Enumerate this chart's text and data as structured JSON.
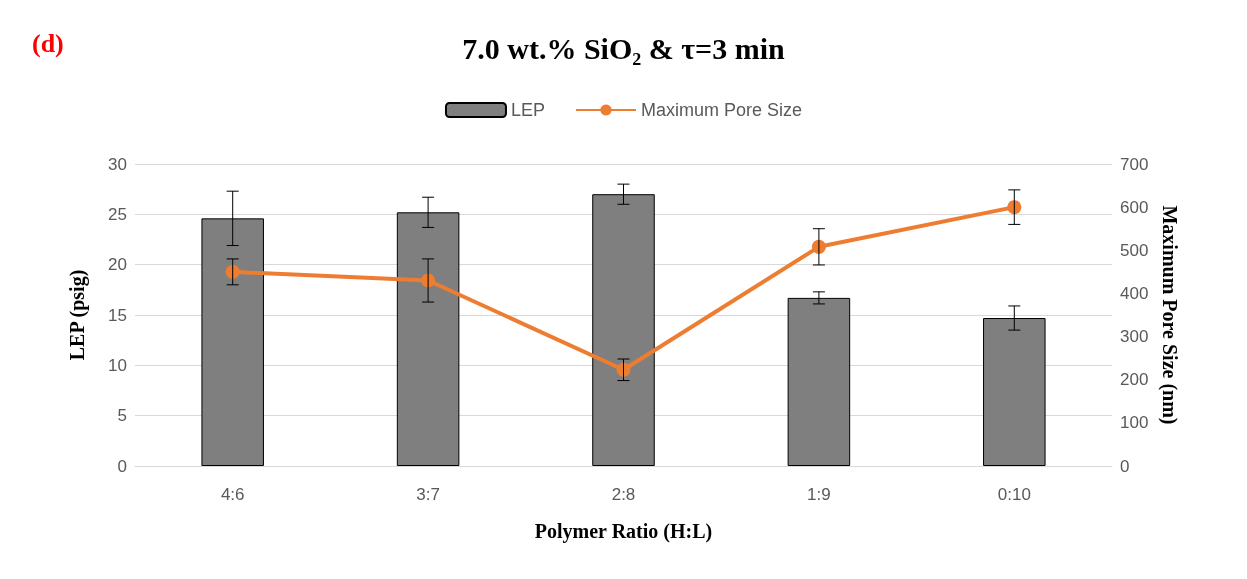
{
  "chart_data": {
    "type": "bar",
    "title": "7.0 wt.% SiO₂ & τ=3 min",
    "xlabel": "Polymer Ratio (H:L)",
    "ylabel": "LEP (psig)",
    "y2label": "Maximum Pore Size (nm)",
    "annotations": [
      "(d)"
    ],
    "categories": [
      "4:6",
      "3:7",
      "2:8",
      "1:9",
      "0:10"
    ],
    "series": [
      {
        "name": "LEP",
        "color": "#7f7f7f",
        "values": [
          24.6,
          25.2,
          27.0,
          16.7,
          14.7
        ],
        "errors": [
          2.7,
          1.5,
          1.0,
          0.6,
          1.2
        ]
      },
      {
        "name": "Maximum Pore Size",
        "type": "line",
        "axis": "y2",
        "color": "#ed7d31",
        "values": [
          450,
          430,
          223,
          508,
          600
        ],
        "errors": [
          30,
          50,
          25,
          42,
          40
        ]
      }
    ],
    "ylim": [
      0,
      30
    ],
    "yticks": [
      0,
      5,
      10,
      15,
      20,
      25,
      30
    ],
    "y2lim": [
      0,
      700
    ],
    "y2ticks": [
      0,
      100,
      200,
      300,
      400,
      500,
      600,
      700
    ],
    "grid": "y",
    "legend": "top",
    "marker": "circle",
    "line_style": "solid"
  }
}
